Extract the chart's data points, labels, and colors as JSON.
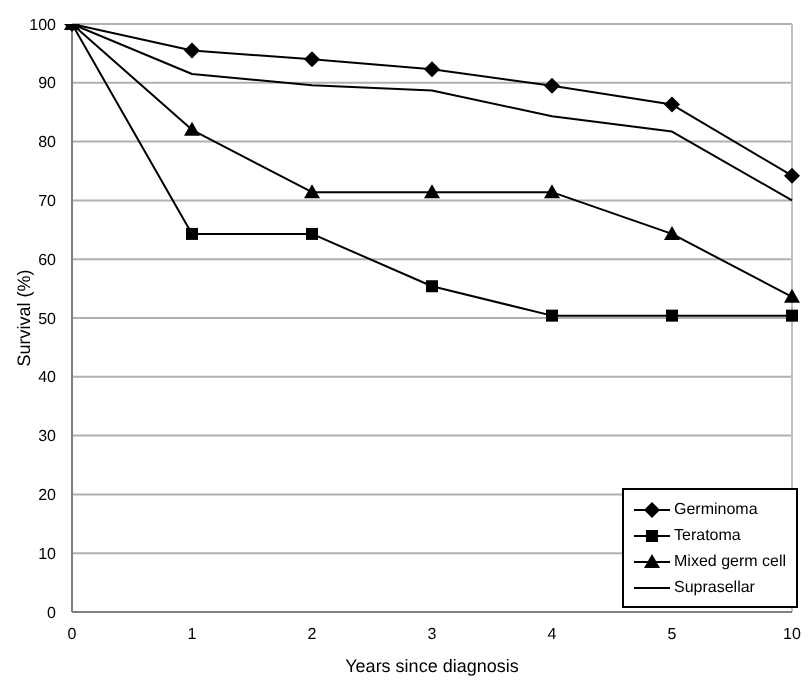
{
  "chart_data": {
    "type": "line",
    "xlabel": "Years since diagnosis",
    "ylabel": "Survival (%)",
    "categories": [
      "0",
      "1",
      "2",
      "3",
      "4",
      "5",
      "10"
    ],
    "ylim": [
      0,
      100
    ],
    "yticks": [
      0,
      10,
      20,
      30,
      40,
      50,
      60,
      70,
      80,
      90,
      100
    ],
    "grid": "y",
    "legend": "bottom right",
    "series": [
      {
        "name": "Germinoma",
        "color": "#000000",
        "marker": "diamond",
        "values": [
          100,
          95.5,
          94,
          92.3,
          89.5,
          86.3,
          74.2
        ]
      },
      {
        "name": "Teratoma",
        "color": "#000000",
        "marker": "square",
        "values": [
          100,
          64.3,
          64.3,
          55.4,
          50.4,
          50.4,
          50.4
        ]
      },
      {
        "name": "Mixed germ cell",
        "color": "#000000",
        "marker": "triangle",
        "values": [
          100,
          82,
          71.4,
          71.4,
          71.4,
          64.3,
          53.6
        ]
      },
      {
        "name": "Suprasellar",
        "color": "#000000",
        "marker": "none",
        "values": [
          100,
          91.5,
          89.6,
          88.7,
          84.3,
          81.7,
          70
        ]
      }
    ]
  }
}
